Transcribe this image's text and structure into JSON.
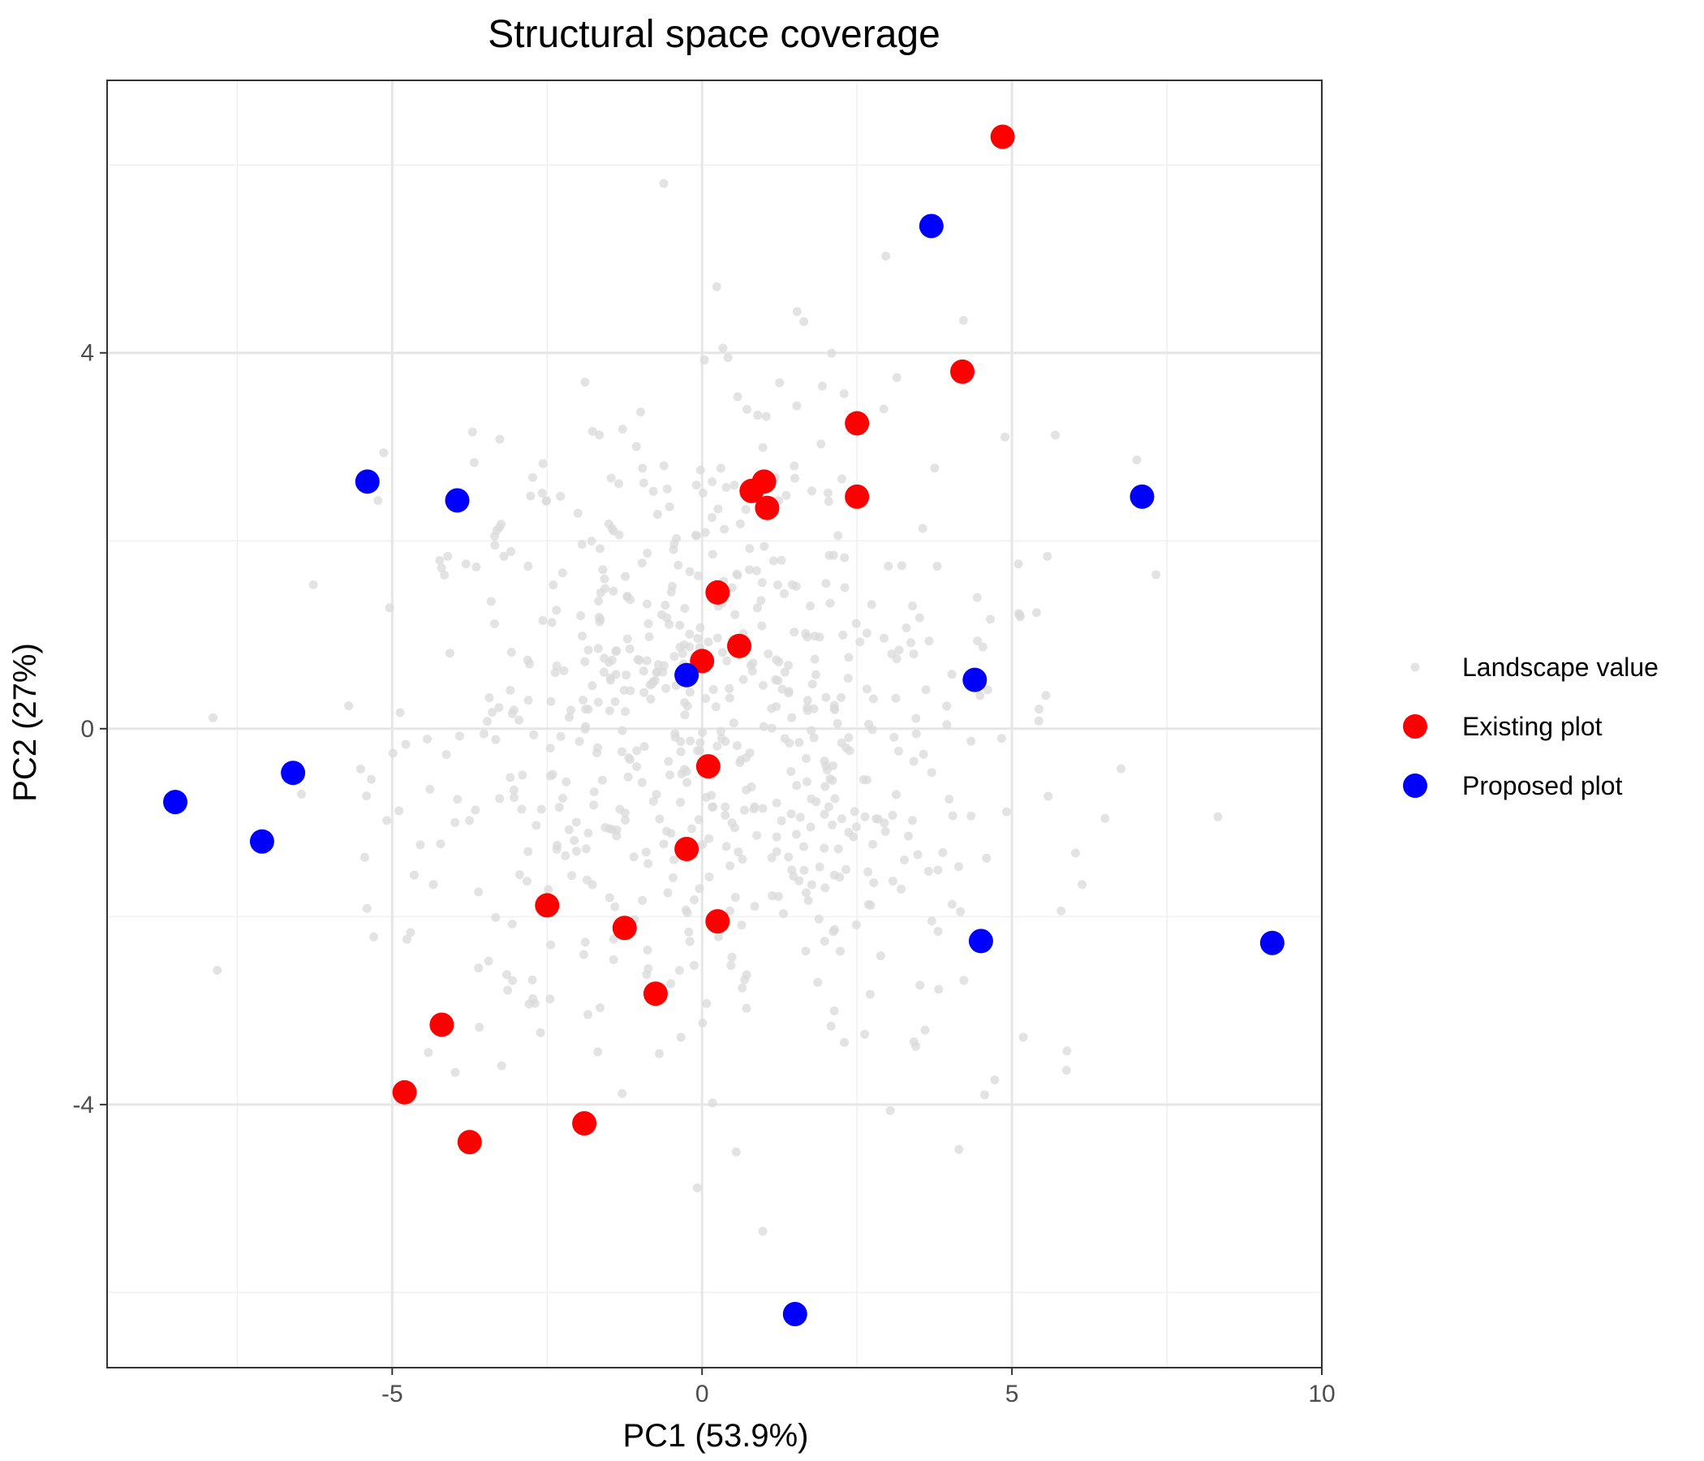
{
  "chart_data": {
    "type": "scatter",
    "title": "Structural space coverage",
    "xlabel": "PC1 (53.9%)",
    "ylabel": "PC2 (27%)",
    "xlim": [
      -9.6,
      10.0
    ],
    "ylim": [
      -6.8,
      6.9
    ],
    "xticks": [
      -5,
      0,
      5,
      10
    ],
    "xtick_labels": [
      "-5",
      "0",
      "5",
      "10"
    ],
    "yticks": [
      -4,
      0,
      4
    ],
    "ytick_labels": [
      "-4",
      "0",
      "4"
    ],
    "x_minor_gridlines": [
      -7.5,
      -2.5,
      2.5,
      7.5
    ],
    "y_minor_gridlines": [
      -6,
      -2,
      2,
      6
    ],
    "grid": true,
    "legend_position": "right",
    "series": [
      {
        "name": "Landscape value",
        "color": "#d9d9d9",
        "random_seed": 20240521,
        "count": 700,
        "distribution": "bivariate normal",
        "x_mean": 0.2,
        "x_sd": 2.6,
        "y_mean": 0.2,
        "y_sd": 1.7
      },
      {
        "name": "Existing plot",
        "color": "#ff0000",
        "points": [
          [
            4.85,
            6.3
          ],
          [
            4.2,
            3.8
          ],
          [
            2.5,
            3.25
          ],
          [
            2.5,
            2.47
          ],
          [
            1.0,
            2.63
          ],
          [
            0.8,
            2.53
          ],
          [
            1.05,
            2.35
          ],
          [
            0.25,
            1.45
          ],
          [
            0.6,
            0.88
          ],
          [
            0.0,
            0.72
          ],
          [
            0.1,
            -0.4
          ],
          [
            -0.25,
            -1.28
          ],
          [
            -2.5,
            -1.88
          ],
          [
            -1.25,
            -2.12
          ],
          [
            0.25,
            -2.05
          ],
          [
            -0.75,
            -2.82
          ],
          [
            -4.2,
            -3.15
          ],
          [
            -4.8,
            -3.87
          ],
          [
            -3.75,
            -4.4
          ],
          [
            -1.9,
            -4.2
          ]
        ]
      },
      {
        "name": "Proposed plot",
        "color": "#0000ff",
        "points": [
          [
            3.7,
            5.35
          ],
          [
            7.1,
            2.47
          ],
          [
            -5.4,
            2.63
          ],
          [
            -3.95,
            2.43
          ],
          [
            -0.25,
            0.57
          ],
          [
            4.4,
            0.52
          ],
          [
            -6.6,
            -0.47
          ],
          [
            -8.5,
            -0.78
          ],
          [
            -7.1,
            -1.2
          ],
          [
            4.5,
            -2.26
          ],
          [
            9.2,
            -2.28
          ],
          [
            1.5,
            -6.23
          ]
        ]
      }
    ]
  }
}
